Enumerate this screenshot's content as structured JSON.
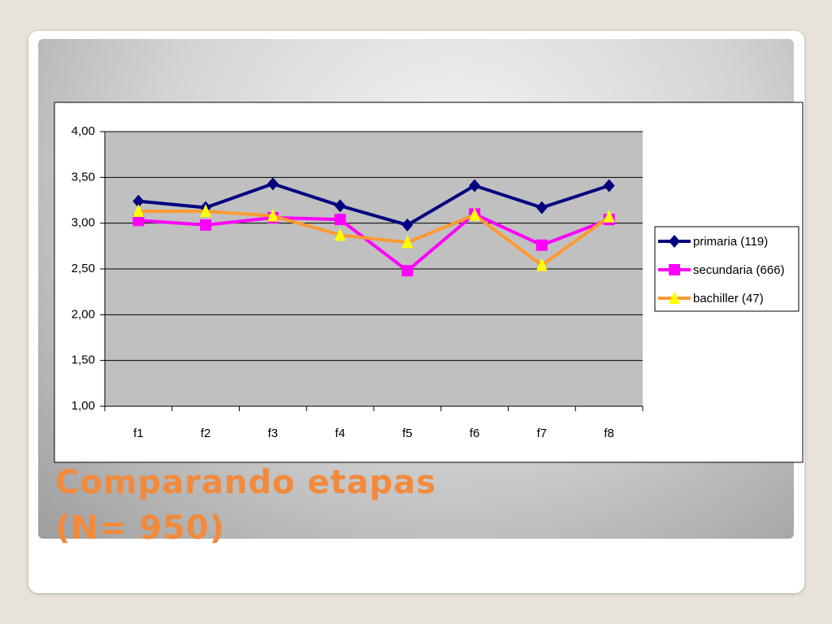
{
  "chart_data": {
    "type": "line",
    "title": "Comparando etapas (N= 950)",
    "categories": [
      "f1",
      "f2",
      "f3",
      "f4",
      "f5",
      "f6",
      "f7",
      "f8"
    ],
    "series": [
      {
        "name": "primaria (119)",
        "color": "#000080",
        "marker": "diamond",
        "marker_color": "#000080",
        "values": [
          3.24,
          3.17,
          3.43,
          3.19,
          2.98,
          3.41,
          3.17,
          3.41
        ]
      },
      {
        "name": "secundaria (666)",
        "color": "#ff00ff",
        "marker": "square",
        "marker_color": "#ff00ff",
        "values": [
          3.03,
          2.98,
          3.06,
          3.04,
          2.48,
          3.1,
          2.76,
          3.04
        ]
      },
      {
        "name": "bachiller (47)",
        "color": "#ff9933",
        "marker": "triangle",
        "marker_color": "#ffff00",
        "values": [
          3.13,
          3.13,
          3.08,
          2.87,
          2.79,
          3.09,
          2.54,
          3.07
        ]
      }
    ],
    "ylim": [
      1,
      4
    ],
    "yticks": [
      {
        "value": 1,
        "label": "1,00"
      },
      {
        "value": 1.5,
        "label": "1,50"
      },
      {
        "value": 2,
        "label": "2,00"
      },
      {
        "value": 2.5,
        "label": "2,50"
      },
      {
        "value": 3,
        "label": "3,00"
      },
      {
        "value": 3.5,
        "label": "3,50"
      },
      {
        "value": 4,
        "label": "4,00"
      }
    ],
    "grid": true,
    "legend": "right"
  }
}
